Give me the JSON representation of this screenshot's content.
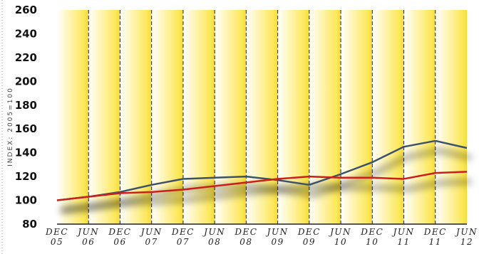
{
  "chart_data": {
    "type": "line",
    "ylabel": "INDEX: 2005=100",
    "ylim": [
      80,
      260
    ],
    "yticks": [
      80,
      100,
      120,
      140,
      160,
      180,
      200,
      220,
      240,
      260
    ],
    "x": [
      {
        "top": "DEC",
        "bottom": "05"
      },
      {
        "top": "JUN",
        "bottom": "06"
      },
      {
        "top": "DEC",
        "bottom": "06"
      },
      {
        "top": "JUN",
        "bottom": "07"
      },
      {
        "top": "DEC",
        "bottom": "07"
      },
      {
        "top": "JUN",
        "bottom": "08"
      },
      {
        "top": "DEC",
        "bottom": "08"
      },
      {
        "top": "JUN",
        "bottom": "09"
      },
      {
        "top": "DEC",
        "bottom": "09"
      },
      {
        "top": "JUN",
        "bottom": "10"
      },
      {
        "top": "DEC",
        "bottom": "10"
      },
      {
        "top": "JUN",
        "bottom": "11"
      },
      {
        "top": "DEC",
        "bottom": "11"
      },
      {
        "top": "JUN",
        "bottom": "12"
      }
    ],
    "series": [
      {
        "color": "#3d5268",
        "values": [
          100,
          103,
          107,
          113,
          118,
          119,
          120,
          117,
          113,
          122,
          132,
          145,
          150,
          144
        ]
      },
      {
        "color": "#cc1f1a",
        "values": [
          100,
          103,
          106,
          107,
          109,
          112,
          115,
          118,
          120,
          119,
          119,
          118,
          123,
          124
        ]
      }
    ],
    "grid": true,
    "background_bands": "#fce85a"
  }
}
